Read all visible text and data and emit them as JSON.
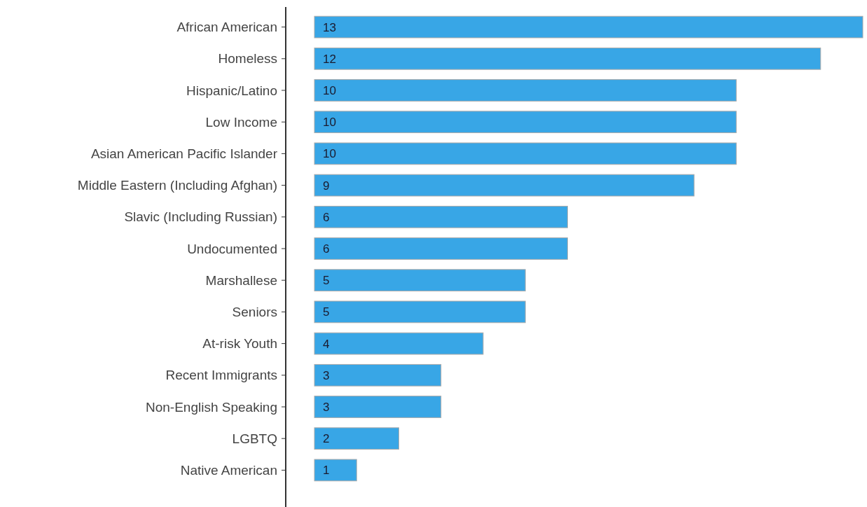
{
  "chart_data": {
    "type": "bar",
    "orientation": "horizontal",
    "categories": [
      "African American",
      "Homeless",
      "Hispanic/Latino",
      "Low Income",
      "Asian American Pacific Islander",
      "Middle Eastern (Including Afghan)",
      "Slavic (Including Russian)",
      "Undocumented",
      "Marshallese",
      "Seniors",
      "At-risk Youth",
      "Recent Immigrants",
      "Non-English Speaking",
      "LGBTQ",
      "Native American"
    ],
    "values": [
      13,
      12,
      10,
      10,
      10,
      9,
      6,
      6,
      5,
      5,
      4,
      3,
      3,
      2,
      1
    ],
    "color": "#38a6e6",
    "data_labels": true
  }
}
